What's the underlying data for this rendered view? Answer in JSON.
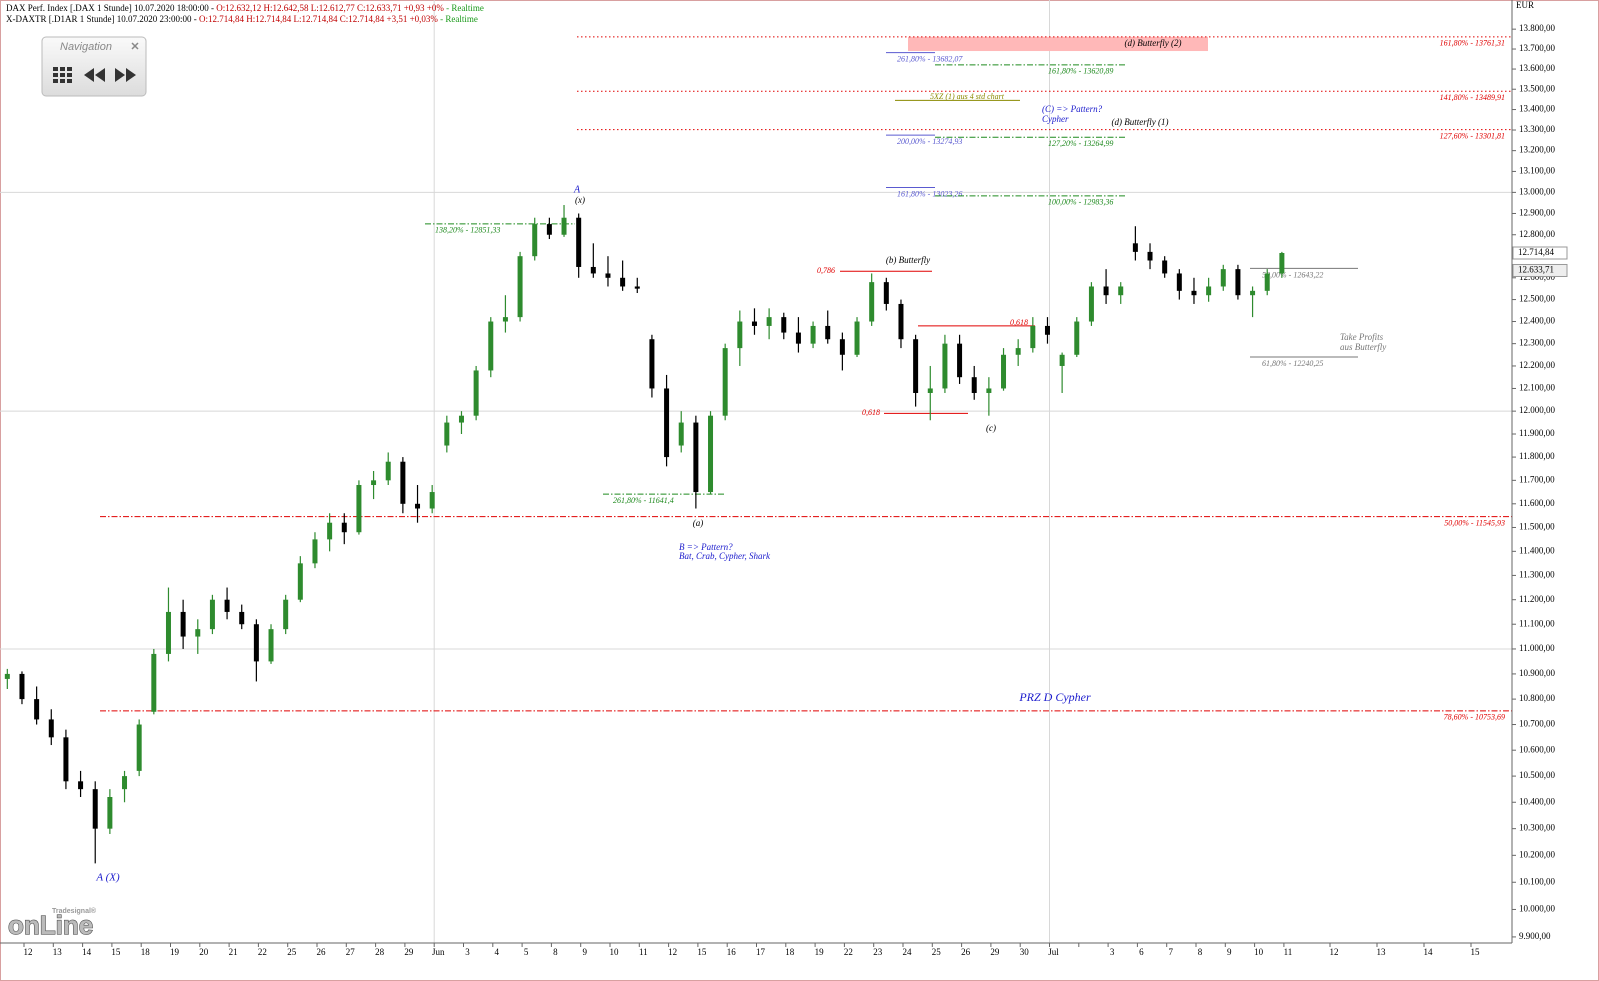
{
  "chart_data": {
    "type": "candlestick",
    "header": [
      {
        "name": "DAX Perf. Index [.DAX 1 Stunde] 10.07.2020 18:00:00 -",
        "quote": "O:12.632,12 H:12.642,58 L:12.612,77 C:12.633,71 +0,93 +0%",
        "status": "- Realtime"
      },
      {
        "name": "X-DAXTR [.D1AR 1 Stunde] 10.07.2020 23:00:00 -",
        "quote": "O:12.714,84 H:12.714,84 L:12.714,84 C:12.714,84 +3,51 +0,03%",
        "status": "- Realtime"
      }
    ],
    "navigation": "Navigation",
    "y_unit": "EUR",
    "logo": {
      "top": "Tradesignal®",
      "main": "onLine"
    },
    "log_scale": true,
    "ylim": [
      9878,
      13948
    ],
    "yticks": [
      {
        "value": 9900,
        "label": "9.900,00"
      },
      {
        "value": 10000,
        "label": "10.000,00"
      },
      {
        "value": 10100,
        "label": "10.100,00"
      },
      {
        "value": 10200,
        "label": "10.200,00"
      },
      {
        "value": 10300,
        "label": "10.300,00"
      },
      {
        "value": 10400,
        "label": "10.400,00"
      },
      {
        "value": 10500,
        "label": "10.500,00"
      },
      {
        "value": 10600,
        "label": "10.600,00"
      },
      {
        "value": 10700,
        "label": "10.700,00"
      },
      {
        "value": 10800,
        "label": "10.800,00"
      },
      {
        "value": 10900,
        "label": "10.900,00"
      },
      {
        "value": 11000,
        "label": "11.000,00"
      },
      {
        "value": 11100,
        "label": "11.100,00"
      },
      {
        "value": 11200,
        "label": "11.200,00"
      },
      {
        "value": 11300,
        "label": "11.300,00"
      },
      {
        "value": 11400,
        "label": "11.400,00"
      },
      {
        "value": 11500,
        "label": "11.500,00"
      },
      {
        "value": 11600,
        "label": "11.600,00"
      },
      {
        "value": 11700,
        "label": "11.700,00"
      },
      {
        "value": 11800,
        "label": "11.800,00"
      },
      {
        "value": 11900,
        "label": "11.900,00"
      },
      {
        "value": 12000,
        "label": "12.000,00"
      },
      {
        "value": 12100,
        "label": "12.100,00"
      },
      {
        "value": 12200,
        "label": "12.200,00"
      },
      {
        "value": 12300,
        "label": "12.300,00"
      },
      {
        "value": 12400,
        "label": "12.400,00"
      },
      {
        "value": 12500,
        "label": "12.500,00"
      },
      {
        "value": 12600,
        "label": "12.600,00"
      },
      {
        "value": 12800,
        "label": "12.800,00"
      },
      {
        "value": 12900,
        "label": "12.900,00"
      },
      {
        "value": 13000,
        "label": "13.000,00"
      },
      {
        "value": 13100,
        "label": "13.100,00"
      },
      {
        "value": 13200,
        "label": "13.200,00"
      },
      {
        "value": 13300,
        "label": "13.300,00"
      },
      {
        "value": 13400,
        "label": "13.400,00"
      },
      {
        "value": 13500,
        "label": "13.500,00"
      },
      {
        "value": 13600,
        "label": "13.600,00"
      },
      {
        "value": 13700,
        "label": "13.700,00"
      },
      {
        "value": 13800,
        "label": "13.800,00"
      }
    ],
    "hgrid": [
      11000,
      12000,
      13000
    ],
    "categories": [
      "12",
      "13",
      "14",
      "15",
      "18",
      "19",
      "20",
      "21",
      "22",
      "25",
      "26",
      "27",
      "28",
      "29",
      "Jun",
      "3",
      "4",
      "5",
      "8",
      "9",
      "10",
      "11",
      "12",
      "15",
      "16",
      "17",
      "18",
      "19",
      "22",
      "23",
      "24",
      "25",
      "26",
      "29",
      "30",
      "Jul",
      null,
      "3",
      "6",
      "7",
      "8",
      "9",
      "10",
      "11",
      "12",
      "13",
      "14",
      "15"
    ],
    "up_color": "#2e8b2e",
    "down_color": "#000000",
    "candles": [
      [
        10880,
        10920,
        10840,
        10900
      ],
      [
        10900,
        10910,
        10780,
        10800
      ],
      [
        10800,
        10850,
        10700,
        10720
      ],
      [
        10720,
        10760,
        10620,
        10650
      ],
      [
        10650,
        10680,
        10450,
        10480
      ],
      [
        10480,
        10520,
        10420,
        10450
      ],
      [
        10450,
        10480,
        10170,
        10300
      ],
      [
        10300,
        10450,
        10280,
        10420
      ],
      [
        10450,
        10520,
        10400,
        10500
      ],
      [
        10520,
        10720,
        10500,
        10700
      ],
      [
        10750,
        11000,
        10740,
        10980
      ],
      [
        10980,
        11250,
        10950,
        11150
      ],
      [
        11150,
        11200,
        11000,
        11050
      ],
      [
        11050,
        11120,
        10980,
        11080
      ],
      [
        11080,
        11220,
        11060,
        11200
      ],
      [
        11200,
        11250,
        11120,
        11150
      ],
      [
        11150,
        11180,
        11080,
        11100
      ],
      [
        11100,
        11120,
        10870,
        10950
      ],
      [
        10950,
        11100,
        10940,
        11080
      ],
      [
        11080,
        11220,
        11060,
        11200
      ],
      [
        11200,
        11380,
        11190,
        11350
      ],
      [
        11350,
        11480,
        11330,
        11450
      ],
      [
        11450,
        11560,
        11400,
        11520
      ],
      [
        11520,
        11560,
        11430,
        11480
      ],
      [
        11480,
        11700,
        11470,
        11680
      ],
      [
        11680,
        11740,
        11620,
        11700
      ],
      [
        11700,
        11820,
        11680,
        11780
      ],
      [
        11780,
        11800,
        11560,
        11600
      ],
      [
        11600,
        11680,
        11520,
        11580
      ],
      [
        11580,
        11680,
        11560,
        11650
      ],
      [
        11850,
        11980,
        11820,
        11950
      ],
      [
        11950,
        12000,
        11900,
        11980
      ],
      [
        11980,
        12200,
        11960,
        12180
      ],
      [
        12180,
        12420,
        12150,
        12400
      ],
      [
        12400,
        12520,
        12350,
        12420
      ],
      [
        12420,
        12720,
        12400,
        12700
      ],
      [
        12700,
        12880,
        12680,
        12850
      ],
      [
        12850,
        12880,
        12780,
        12800
      ],
      [
        12800,
        12940,
        12790,
        12880
      ],
      [
        12880,
        12900,
        12600,
        12650
      ],
      [
        12650,
        12760,
        12600,
        12620
      ],
      [
        12620,
        12700,
        12560,
        12600
      ],
      [
        12600,
        12680,
        12540,
        12560
      ],
      [
        12560,
        12600,
        12530,
        12550
      ],
      [
        12320,
        12340,
        12060,
        12100
      ],
      [
        12100,
        12160,
        11760,
        11800
      ],
      [
        11850,
        12000,
        11820,
        11950
      ],
      [
        11950,
        11980,
        11580,
        11650
      ],
      [
        11650,
        12000,
        11640,
        11980
      ],
      [
        11980,
        12300,
        11960,
        12280
      ],
      [
        12280,
        12450,
        12200,
        12400
      ],
      [
        12400,
        12460,
        12340,
        12380
      ],
      [
        12380,
        12460,
        12320,
        12420
      ],
      [
        12420,
        12440,
        12320,
        12350
      ],
      [
        12350,
        12420,
        12260,
        12300
      ],
      [
        12300,
        12400,
        12280,
        12380
      ],
      [
        12380,
        12450,
        12300,
        12320
      ],
      [
        12320,
        12350,
        12180,
        12250
      ],
      [
        12250,
        12420,
        12240,
        12400
      ],
      [
        12400,
        12620,
        12380,
        12580
      ],
      [
        12580,
        12600,
        12450,
        12480
      ],
      [
        12480,
        12500,
        12280,
        12320
      ],
      [
        12320,
        12340,
        12020,
        12080
      ],
      [
        12080,
        12200,
        11960,
        12100
      ],
      [
        12100,
        12340,
        12080,
        12300
      ],
      [
        12300,
        12340,
        12120,
        12150
      ],
      [
        12150,
        12200,
        12050,
        12080
      ],
      [
        12080,
        12150,
        11980,
        12100
      ],
      [
        12100,
        12280,
        12090,
        12250
      ],
      [
        12250,
        12320,
        12200,
        12280
      ],
      [
        12280,
        12420,
        12260,
        12380
      ],
      [
        12380,
        12420,
        12300,
        12340
      ],
      [
        12200,
        12260,
        12080,
        12250
      ],
      [
        12250,
        12420,
        12240,
        12400
      ],
      [
        12400,
        12580,
        12380,
        12560
      ],
      [
        12560,
        12640,
        12480,
        12520
      ],
      [
        12520,
        12580,
        12480,
        12560
      ],
      [
        12760,
        12840,
        12680,
        12720
      ],
      [
        12720,
        12760,
        12640,
        12680
      ],
      [
        12680,
        12700,
        12600,
        12620
      ],
      [
        12620,
        12640,
        12500,
        12540
      ],
      [
        12540,
        12600,
        12480,
        12520
      ],
      [
        12520,
        12600,
        12490,
        12560
      ],
      [
        12560,
        12660,
        12540,
        12640
      ],
      [
        12640,
        12660,
        12500,
        12520
      ],
      [
        12520,
        12560,
        12420,
        12540
      ],
      [
        12540,
        12640,
        12520,
        12620
      ],
      [
        12620,
        12720,
        12600,
        12714.84
      ]
    ],
    "last_prices": [
      {
        "value": 12714.84,
        "label": "12.714,84"
      },
      {
        "value": 12633.71,
        "label": "12.633,71"
      }
    ],
    "zones": [
      {
        "label": "(d) Butterfly (2)",
        "from": 13690,
        "to": 13761.31,
        "color": "#ffb8b8"
      }
    ],
    "levels": [
      {
        "label": "161,80% - 13761,31",
        "value": 13761.31,
        "color": "#e00000",
        "dash": "dotted"
      },
      {
        "label": "141,80% - 13489,91",
        "value": 13489.91,
        "color": "#e00000",
        "dash": "dotted"
      },
      {
        "label": "127,60% - 13301,81",
        "value": 13301.81,
        "color": "#e00000",
        "dash": "dotted"
      },
      {
        "label": "50,00% - 11545,93",
        "value": 11545.93,
        "color": "#e00000",
        "dash": "dashdot"
      },
      {
        "label": "78,60% - 10753,69",
        "value": 10753.69,
        "color": "#e00000",
        "dash": "dashdot"
      },
      {
        "label": "261,80% - 13682,07",
        "value": 13682.07,
        "color": "#5a5ad0",
        "dash": "solid"
      },
      {
        "label": "200,00% - 13274,93",
        "value": 13274.93,
        "color": "#5a5ad0",
        "dash": "solid"
      },
      {
        "label": "161,80% - 13023,26",
        "value": 13023.26,
        "color": "#5a5ad0",
        "dash": "solid"
      },
      {
        "label": "161,80% - 13620,89",
        "value": 13620.89,
        "color": "#1f8a1f",
        "dash": "dashdot"
      },
      {
        "label": "127,20% - 13264,99",
        "value": 13264.99,
        "color": "#1f8a1f",
        "dash": "dashdot"
      },
      {
        "label": "100,00% - 12983,36",
        "value": 12983.36,
        "color": "#1f8a1f",
        "dash": "dashdot"
      },
      {
        "label": "138,20% - 12851,33",
        "value": 12851.33,
        "color": "#1f8a1f",
        "dash": "dashdot"
      },
      {
        "label": "261,80% - 11641,4",
        "value": 11641.4,
        "color": "#1f8a1f",
        "dash": "dashdot"
      },
      {
        "label": "50,00% - 12643,22",
        "value": 12643.22,
        "color": "#777777",
        "dash": "solid"
      },
      {
        "label": "61,80% - 12240,25",
        "value": 12240.25,
        "color": "#777777",
        "dash": "solid"
      },
      {
        "label": "5XZ (1) aus 4 std chart",
        "value": 13445,
        "color": "#8a8a00",
        "dash": "solid"
      },
      {
        "label": "0,786",
        "value": 12630,
        "color": "#e00000",
        "dash": "solid"
      },
      {
        "label": "0,618",
        "value": 12380,
        "color": "#e00000",
        "dash": "solid"
      },
      {
        "label": "0,618",
        "value": 11990,
        "color": "#e00000",
        "dash": "solid"
      }
    ],
    "annotations": [
      "A",
      "(x)",
      "A (X)",
      "(a)",
      "B => Pattern?",
      "Bat, Crab, Cypher, Shark",
      "(b) Butterfly",
      "(c)",
      "(C) => Pattern?",
      "Cypher",
      "(d) Butterfly (1)",
      "Take Profits",
      "aus Butterfly",
      "PRZ D Cypher"
    ]
  }
}
